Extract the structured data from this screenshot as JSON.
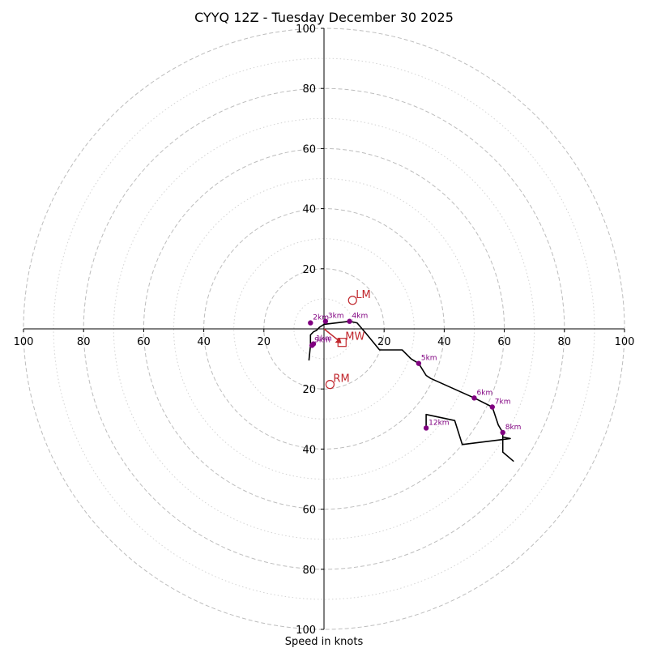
{
  "title": "CYYQ 12Z - Tuesday December 30 2025",
  "xlabel": "Speed in knots",
  "colors": {
    "hodograph": "#000000",
    "height_markers": "#800080",
    "motion_markers": "#c1272d",
    "ring_major": "#bdbdbd",
    "ring_minor": "#d3d3d3",
    "axis": "#000000"
  },
  "chart_data": {
    "type": "hodograph",
    "title": "CYYQ 12Z - Tuesday December 30 2025",
    "xlabel": "Speed in knots",
    "axis_range": [
      -100,
      100
    ],
    "rings_major": [
      20,
      40,
      60,
      80,
      100
    ],
    "rings_minor": [
      10,
      30,
      50,
      70,
      90
    ],
    "tick_labels_x": [
      "100",
      "80",
      "60",
      "40",
      "20",
      "20",
      "40",
      "60",
      "80",
      "100"
    ],
    "tick_values_x": [
      -100,
      -80,
      -60,
      -40,
      -20,
      20,
      40,
      60,
      80,
      100
    ],
    "tick_labels_y": [
      "100",
      "80",
      "60",
      "40",
      "20",
      "20",
      "40",
      "60",
      "80",
      "100"
    ],
    "tick_values_y": [
      100,
      80,
      60,
      40,
      20,
      -20,
      -40,
      -60,
      -80,
      -100
    ],
    "wind_profile": [
      {
        "u": -5,
        "v": -10.5
      },
      {
        "u": -4.5,
        "v": -5.5
      },
      {
        "u": -4.5,
        "v": -2
      },
      {
        "u": -3.5,
        "v": -1
      },
      {
        "u": -2.5,
        "v": -0.5
      },
      {
        "u": -1.5,
        "v": 0.5
      },
      {
        "u": 0,
        "v": 1.5
      },
      {
        "u": 8.5,
        "v": 2.5
      },
      {
        "u": 11,
        "v": 2
      },
      {
        "u": 14,
        "v": -1.5
      },
      {
        "u": 18.5,
        "v": -7
      },
      {
        "u": 26,
        "v": -7
      },
      {
        "u": 29,
        "v": -10
      },
      {
        "u": 31.5,
        "v": -11.5
      },
      {
        "u": 34,
        "v": -15.5
      },
      {
        "u": 35.5,
        "v": -16.5
      },
      {
        "u": 50,
        "v": -23
      },
      {
        "u": 56,
        "v": -26
      },
      {
        "u": 58,
        "v": -32
      },
      {
        "u": 59.5,
        "v": -34.5
      },
      {
        "u": 59.5,
        "v": -41
      },
      {
        "u": 63,
        "v": -44
      },
      {
        "u": 59.5,
        "v": -41
      },
      {
        "u": 59.5,
        "v": -36
      },
      {
        "u": 62,
        "v": -36.5
      },
      {
        "u": 46,
        "v": -38.5
      },
      {
        "u": 43.5,
        "v": -30.5
      },
      {
        "u": 34,
        "v": -28.5
      },
      {
        "u": 34,
        "v": -33
      }
    ],
    "height_markers": [
      {
        "label": "2km",
        "u": -4.5,
        "v": 2
      },
      {
        "label": "3km",
        "u": 0.5,
        "v": 2.5
      },
      {
        "label": "4km",
        "u": 8.5,
        "v": 2.5
      },
      {
        "label": "5km",
        "u": 31.5,
        "v": -11.5
      },
      {
        "label": "6km",
        "u": 50,
        "v": -23
      },
      {
        "label": "7km",
        "u": 56,
        "v": -26
      },
      {
        "label": "8km",
        "u": 59.5,
        "v": -34.5
      },
      {
        "label": "12km",
        "u": 34,
        "v": -33
      },
      {
        "label": "9km",
        "u": -4,
        "v": -5.5
      },
      {
        "label": "1km",
        "u": -3.5,
        "v": -5
      }
    ],
    "storm_motion": [
      {
        "label": "LM",
        "u": 9.5,
        "v": 9.5,
        "marker": "circle"
      },
      {
        "label": "RM",
        "u": 2,
        "v": -18.5,
        "marker": "circle"
      },
      {
        "label": "MW",
        "u": 6,
        "v": -4.5,
        "marker": "square"
      }
    ],
    "mean_wind_arrow": {
      "from": {
        "u": 0,
        "v": 0
      },
      "to": {
        "u": 5,
        "v": -4
      }
    }
  }
}
